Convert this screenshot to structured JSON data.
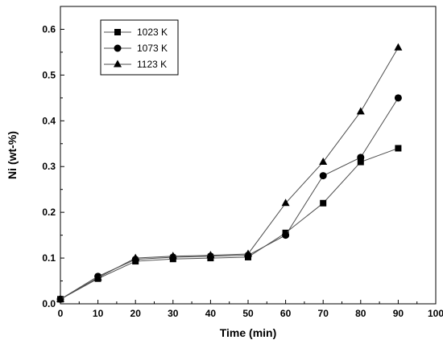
{
  "chart_data": {
    "type": "line",
    "title": "",
    "xlabel": "Time (min)",
    "ylabel": "Ni (wt-%)",
    "xlim": [
      0,
      100
    ],
    "ylim": [
      0,
      0.65
    ],
    "x_ticks": [
      0,
      10,
      20,
      30,
      40,
      50,
      60,
      70,
      80,
      90,
      100
    ],
    "y_ticks": [
      0.0,
      0.1,
      0.2,
      0.3,
      0.4,
      0.5,
      0.6
    ],
    "x_tick_labels": [
      "0",
      "10",
      "20",
      "30",
      "40",
      "50",
      "60",
      "70",
      "80",
      "90",
      "100"
    ],
    "y_tick_labels": [
      "0.0",
      "0.1",
      "0.2",
      "0.3",
      "0.4",
      "0.5",
      "0.6"
    ],
    "grid": false,
    "legend_position": "top-left",
    "x": [
      0,
      10,
      20,
      30,
      40,
      50,
      60,
      70,
      80,
      90
    ],
    "series": [
      {
        "name": "1023 K",
        "marker": "square",
        "values": [
          0.01,
          0.055,
          0.093,
          0.098,
          0.1,
          0.102,
          0.155,
          0.22,
          0.31,
          0.34
        ]
      },
      {
        "name": "1073 K",
        "marker": "circle",
        "values": [
          0.01,
          0.06,
          0.097,
          0.102,
          0.104,
          0.106,
          0.15,
          0.28,
          0.32,
          0.45
        ]
      },
      {
        "name": "1123 K",
        "marker": "triangle",
        "values": [
          0.01,
          0.057,
          0.1,
          0.104,
          0.106,
          0.109,
          0.22,
          0.31,
          0.42,
          0.56
        ]
      }
    ],
    "colors": {
      "line": "#4d4d4d",
      "marker": "#000000",
      "axis": "#000000"
    }
  }
}
